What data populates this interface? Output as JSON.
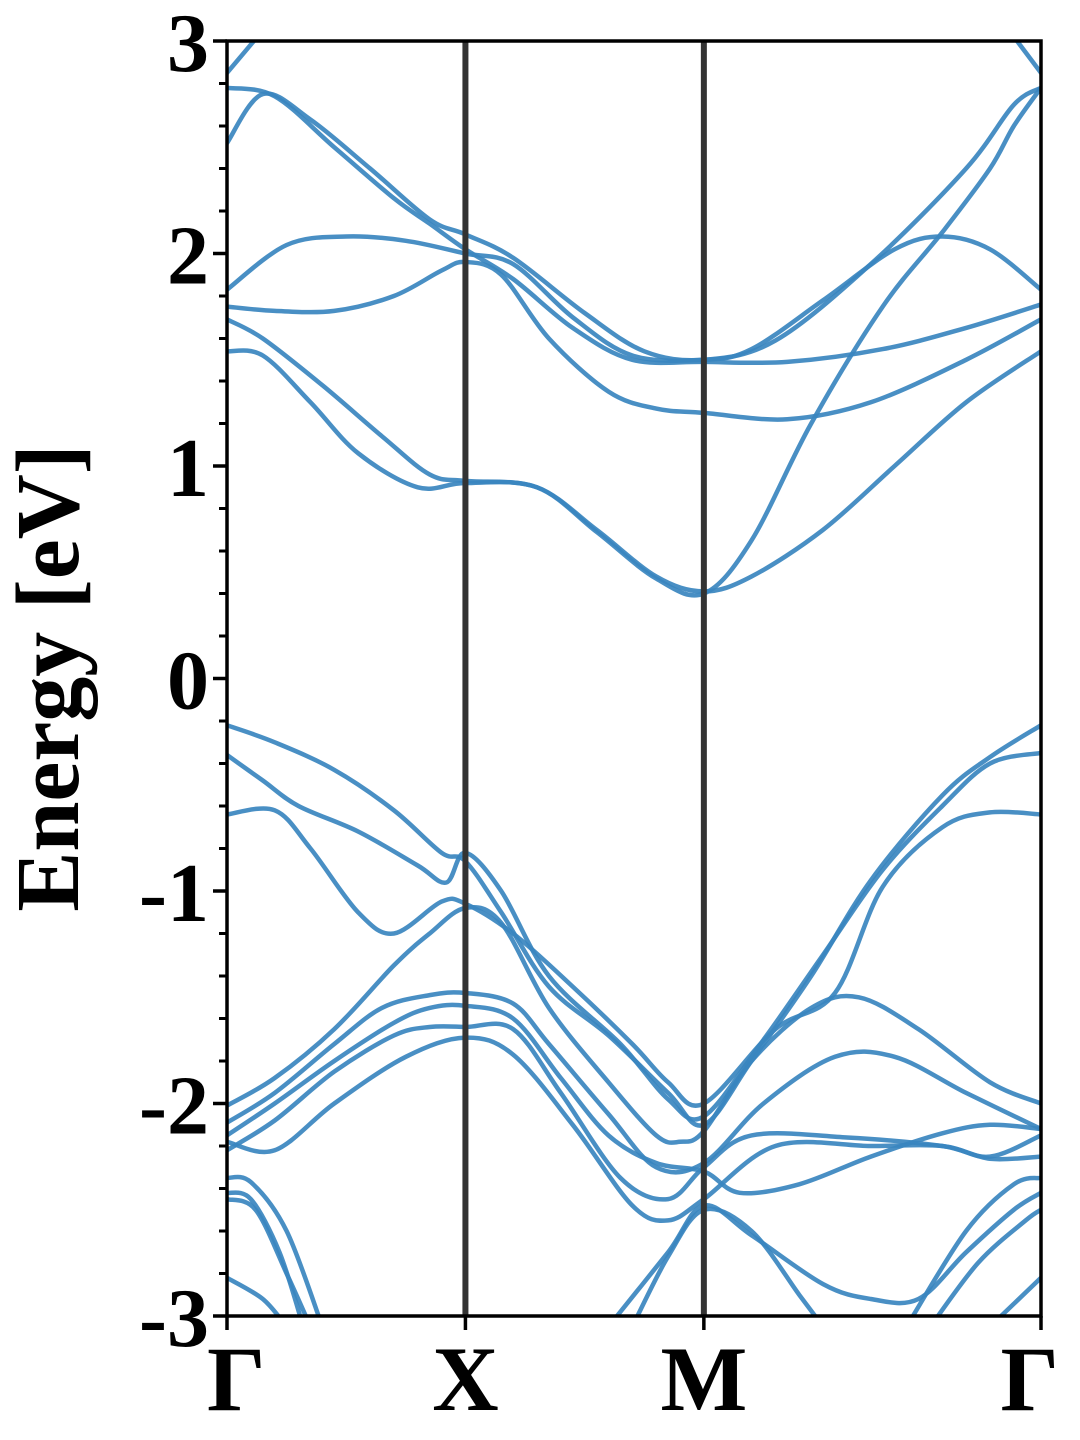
{
  "chart_data": {
    "type": "line",
    "title": "",
    "xlabel": "",
    "ylabel": "Energy [eV]",
    "ylim": [
      -3,
      3
    ],
    "yticks": [
      -3,
      -2,
      -1,
      0,
      1,
      2,
      3
    ],
    "yminor_step": 0.2,
    "x": [
      0,
      1,
      2,
      3.414
    ],
    "kpoints": [
      {
        "label": "Γ",
        "x": 0
      },
      {
        "label": "X",
        "x": 1
      },
      {
        "label": "M",
        "x": 2
      },
      {
        "label": "Γ",
        "x": 3.414
      }
    ],
    "colors": {
      "bands": "#3a86bf",
      "kpath_lines": "#333333",
      "axes": "#000000"
    },
    "grid": false,
    "legend": "none",
    "series": [
      {
        "points": [
          [
            0,
            2.78
          ],
          [
            0.2,
            2.74
          ],
          [
            0.45,
            2.5
          ],
          [
            0.7,
            2.26
          ],
          [
            0.85,
            2.14
          ],
          [
            1,
            2.02
          ],
          [
            1.2,
            1.88
          ],
          [
            1.45,
            1.65
          ],
          [
            1.7,
            1.5
          ],
          [
            2,
            1.49
          ],
          [
            2.35,
            1.49
          ],
          [
            2.75,
            1.55
          ],
          [
            3.1,
            1.65
          ],
          [
            3.414,
            1.76
          ]
        ]
      },
      {
        "points": [
          [
            0,
            2.52
          ],
          [
            0.15,
            2.75
          ],
          [
            0.35,
            2.63
          ],
          [
            0.6,
            2.4
          ],
          [
            0.85,
            2.16
          ],
          [
            1,
            2.09
          ],
          [
            1.2,
            1.98
          ],
          [
            1.5,
            1.72
          ],
          [
            1.75,
            1.54
          ],
          [
            2,
            1.5
          ],
          [
            2.3,
            1.59
          ],
          [
            2.7,
            1.95
          ],
          [
            3.1,
            2.4
          ],
          [
            3.3,
            2.7
          ],
          [
            3.414,
            2.78
          ]
        ]
      },
      {
        "points": [
          [
            0,
            2.85
          ],
          [
            0.15,
            3.05
          ]
        ]
      },
      {
        "points": [
          [
            3.28,
            3.05
          ],
          [
            3.414,
            2.85
          ]
        ]
      },
      {
        "points": [
          [
            0,
            1.83
          ],
          [
            0.25,
            2.04
          ],
          [
            0.5,
            2.08
          ],
          [
            0.75,
            2.06
          ],
          [
            1,
            2.0
          ],
          [
            1.2,
            1.95
          ],
          [
            1.45,
            1.7
          ],
          [
            1.7,
            1.52
          ],
          [
            2,
            1.5
          ],
          [
            2.2,
            1.55
          ],
          [
            2.5,
            1.78
          ],
          [
            2.8,
            2.02
          ],
          [
            3.0,
            2.08
          ],
          [
            3.2,
            2.02
          ],
          [
            3.414,
            1.83
          ]
        ]
      },
      {
        "points": [
          [
            0,
            1.75
          ],
          [
            0.2,
            1.73
          ],
          [
            0.45,
            1.73
          ],
          [
            0.7,
            1.8
          ],
          [
            0.9,
            1.92
          ],
          [
            1,
            1.96
          ],
          [
            1.15,
            1.9
          ],
          [
            1.35,
            1.6
          ],
          [
            1.6,
            1.35
          ],
          [
            1.8,
            1.27
          ],
          [
            2,
            1.25
          ],
          [
            2.35,
            1.22
          ],
          [
            2.7,
            1.3
          ],
          [
            3.1,
            1.5
          ],
          [
            3.414,
            1.69
          ]
        ]
      },
      {
        "points": [
          [
            0,
            1.69
          ],
          [
            0.15,
            1.6
          ],
          [
            0.4,
            1.38
          ],
          [
            0.65,
            1.14
          ],
          [
            0.85,
            0.96
          ],
          [
            1,
            0.93
          ],
          [
            1.3,
            0.9
          ],
          [
            1.55,
            0.7
          ],
          [
            1.8,
            0.48
          ],
          [
            2,
            0.41
          ],
          [
            2.2,
            0.48
          ],
          [
            2.5,
            0.7
          ],
          [
            2.8,
            1.0
          ],
          [
            3.1,
            1.3
          ],
          [
            3.414,
            1.54
          ]
        ]
      },
      {
        "points": [
          [
            0,
            1.54
          ],
          [
            0.15,
            1.52
          ],
          [
            0.35,
            1.3
          ],
          [
            0.55,
            1.06
          ],
          [
            0.8,
            0.9
          ],
          [
            1,
            0.92
          ],
          [
            1.3,
            0.9
          ],
          [
            1.55,
            0.69
          ],
          [
            1.8,
            0.47
          ],
          [
            2,
            0.4
          ],
          [
            2.2,
            0.65
          ],
          [
            2.45,
            1.2
          ],
          [
            2.75,
            1.75
          ],
          [
            3.0,
            2.1
          ],
          [
            3.2,
            2.4
          ],
          [
            3.3,
            2.6
          ],
          [
            3.414,
            2.78
          ]
        ]
      },
      {
        "points": [
          [
            0,
            -0.22
          ],
          [
            0.2,
            -0.3
          ],
          [
            0.45,
            -0.43
          ],
          [
            0.7,
            -0.62
          ],
          [
            0.9,
            -0.82
          ],
          [
            1,
            -0.86
          ],
          [
            1.15,
            -1.1
          ],
          [
            1.35,
            -1.45
          ],
          [
            1.6,
            -1.68
          ],
          [
            1.85,
            -1.95
          ],
          [
            2,
            -2.1
          ],
          [
            2.2,
            -1.8
          ],
          [
            2.45,
            -1.4
          ],
          [
            2.7,
            -0.95
          ],
          [
            3.0,
            -0.55
          ],
          [
            3.2,
            -0.37
          ],
          [
            3.414,
            -0.22
          ]
        ]
      },
      {
        "points": [
          [
            0,
            -0.36
          ],
          [
            0.15,
            -0.48
          ],
          [
            0.3,
            -0.6
          ],
          [
            0.55,
            -0.72
          ],
          [
            0.8,
            -0.88
          ],
          [
            0.92,
            -0.96
          ],
          [
            1,
            -0.82
          ],
          [
            1.15,
            -1.0
          ],
          [
            1.35,
            -1.4
          ],
          [
            1.65,
            -1.72
          ],
          [
            1.85,
            -1.98
          ],
          [
            2,
            -2.06
          ],
          [
            2.25,
            -1.7
          ],
          [
            2.5,
            -1.3
          ],
          [
            2.75,
            -0.9
          ],
          [
            3.0,
            -0.6
          ],
          [
            3.2,
            -0.4
          ],
          [
            3.414,
            -0.35
          ]
        ]
      },
      {
        "points": [
          [
            0,
            -0.64
          ],
          [
            0.2,
            -0.62
          ],
          [
            0.35,
            -0.8
          ],
          [
            0.55,
            -1.1
          ],
          [
            0.7,
            -1.2
          ],
          [
            0.9,
            -1.05
          ],
          [
            1,
            -1.06
          ],
          [
            1.2,
            -1.2
          ],
          [
            1.45,
            -1.45
          ],
          [
            1.7,
            -1.72
          ],
          [
            1.85,
            -1.9
          ],
          [
            2,
            -2.0
          ],
          [
            2.3,
            -1.65
          ],
          [
            2.55,
            -1.48
          ],
          [
            2.75,
            -0.98
          ],
          [
            3.0,
            -0.7
          ],
          [
            3.2,
            -0.63
          ],
          [
            3.414,
            -0.64
          ]
        ]
      },
      {
        "points": [
          [
            0,
            -2.01
          ],
          [
            0.2,
            -1.88
          ],
          [
            0.45,
            -1.65
          ],
          [
            0.7,
            -1.35
          ],
          [
            0.85,
            -1.2
          ],
          [
            1,
            -1.08
          ],
          [
            1.15,
            -1.15
          ],
          [
            1.35,
            -1.55
          ],
          [
            1.6,
            -1.9
          ],
          [
            1.8,
            -2.15
          ],
          [
            1.9,
            -2.18
          ],
          [
            2,
            -2.13
          ],
          [
            2.2,
            -1.8
          ],
          [
            2.45,
            -1.55
          ],
          [
            2.65,
            -1.5
          ],
          [
            2.9,
            -1.65
          ],
          [
            3.2,
            -1.9
          ],
          [
            3.414,
            -2.0
          ]
        ]
      },
      {
        "points": [
          [
            0,
            -2.09
          ],
          [
            0.2,
            -1.95
          ],
          [
            0.45,
            -1.72
          ],
          [
            0.65,
            -1.55
          ],
          [
            0.85,
            -1.49
          ],
          [
            1,
            -1.48
          ],
          [
            1.2,
            -1.53
          ],
          [
            1.35,
            -1.72
          ],
          [
            1.6,
            -2.05
          ],
          [
            1.8,
            -2.3
          ],
          [
            2,
            -2.28
          ],
          [
            2.25,
            -2.0
          ],
          [
            2.55,
            -1.78
          ],
          [
            2.8,
            -1.78
          ],
          [
            3.1,
            -1.95
          ],
          [
            3.414,
            -2.12
          ]
        ]
      },
      {
        "points": [
          [
            0,
            -2.15
          ],
          [
            0.2,
            -2.0
          ],
          [
            0.45,
            -1.8
          ],
          [
            0.7,
            -1.62
          ],
          [
            0.85,
            -1.55
          ],
          [
            1,
            -1.54
          ],
          [
            1.2,
            -1.6
          ],
          [
            1.4,
            -1.88
          ],
          [
            1.6,
            -2.15
          ],
          [
            1.8,
            -2.28
          ],
          [
            2,
            -2.32
          ],
          [
            2.15,
            -2.42
          ],
          [
            2.4,
            -2.38
          ],
          [
            2.7,
            -2.25
          ],
          [
            3.0,
            -2.14
          ],
          [
            3.2,
            -2.1
          ],
          [
            3.414,
            -2.12
          ]
        ]
      },
      {
        "points": [
          [
            0,
            -2.22
          ],
          [
            0.2,
            -2.08
          ],
          [
            0.45,
            -1.85
          ],
          [
            0.7,
            -1.68
          ],
          [
            0.85,
            -1.64
          ],
          [
            1,
            -1.64
          ],
          [
            1.2,
            -1.65
          ],
          [
            1.4,
            -1.95
          ],
          [
            1.65,
            -2.35
          ],
          [
            1.85,
            -2.45
          ],
          [
            2,
            -2.3
          ],
          [
            2.2,
            -2.15
          ],
          [
            2.6,
            -2.16
          ],
          [
            3.0,
            -2.2
          ],
          [
            3.2,
            -2.25
          ],
          [
            3.414,
            -2.15
          ]
        ]
      },
      {
        "points": [
          [
            0,
            -2.18
          ],
          [
            0.2,
            -2.22
          ],
          [
            0.45,
            -2.0
          ],
          [
            0.75,
            -1.78
          ],
          [
            1,
            -1.69
          ],
          [
            1.2,
            -1.77
          ],
          [
            1.45,
            -2.1
          ],
          [
            1.7,
            -2.48
          ],
          [
            1.85,
            -2.55
          ],
          [
            2,
            -2.45
          ],
          [
            2.3,
            -2.2
          ],
          [
            2.7,
            -2.2
          ],
          [
            3.0,
            -2.2
          ],
          [
            3.2,
            -2.26
          ],
          [
            3.414,
            -2.25
          ]
        ]
      },
      {
        "points": [
          [
            0,
            -2.35
          ],
          [
            0.1,
            -2.37
          ],
          [
            0.25,
            -2.6
          ],
          [
            0.4,
            -3.05
          ]
        ]
      },
      {
        "points": [
          [
            0,
            -2.45
          ],
          [
            0.12,
            -2.5
          ],
          [
            0.25,
            -2.8
          ],
          [
            0.35,
            -3.05
          ]
        ]
      },
      {
        "points": [
          [
            0,
            -2.42
          ],
          [
            0.1,
            -2.45
          ],
          [
            0.22,
            -2.7
          ],
          [
            0.32,
            -3.05
          ]
        ]
      },
      {
        "points": [
          [
            0,
            -2.82
          ],
          [
            0.15,
            -2.92
          ],
          [
            0.25,
            -3.05
          ]
        ]
      },
      {
        "points": [
          [
            1.6,
            -3.05
          ],
          [
            1.85,
            -2.7
          ],
          [
            2,
            -2.48
          ],
          [
            2.2,
            -2.62
          ],
          [
            2.5,
            -2.85
          ],
          [
            2.7,
            -2.92
          ],
          [
            2.9,
            -2.92
          ],
          [
            3.1,
            -2.7
          ],
          [
            3.3,
            -2.5
          ],
          [
            3.414,
            -2.42
          ]
        ]
      },
      {
        "points": [
          [
            1.7,
            -3.05
          ],
          [
            1.85,
            -2.72
          ],
          [
            2,
            -2.5
          ],
          [
            2.2,
            -2.6
          ],
          [
            2.4,
            -2.9
          ],
          [
            2.5,
            -3.05
          ]
        ]
      },
      {
        "points": [
          [
            2.85,
            -3.05
          ],
          [
            3.1,
            -2.6
          ],
          [
            3.3,
            -2.38
          ],
          [
            3.414,
            -2.35
          ]
        ]
      },
      {
        "points": [
          [
            2.95,
            -3.05
          ],
          [
            3.15,
            -2.75
          ],
          [
            3.35,
            -2.55
          ],
          [
            3.414,
            -2.5
          ]
        ]
      },
      {
        "points": [
          [
            3.2,
            -3.05
          ],
          [
            3.414,
            -2.82
          ]
        ]
      }
    ]
  }
}
